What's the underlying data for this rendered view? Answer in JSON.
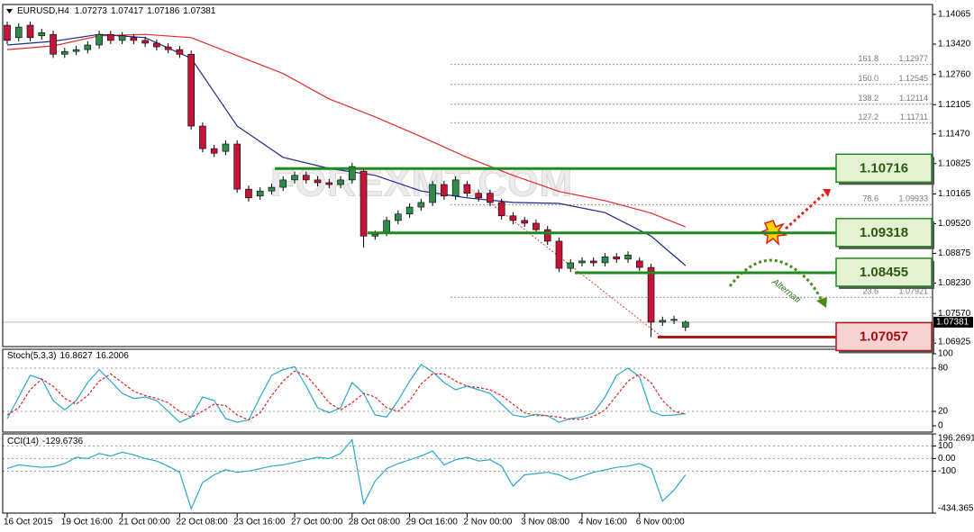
{
  "chart_data": [
    {
      "type": "candlestick",
      "title": "EURUSD,H4",
      "categories": [
        "16 Oct 2015",
        null,
        null,
        null,
        null,
        "19 Oct 16:00",
        null,
        null,
        null,
        null,
        "21 Oct 00:00",
        null,
        null,
        null,
        null,
        "22 Oct 08:00",
        null,
        null,
        null,
        null,
        "23 Oct 16:00",
        null,
        null,
        null,
        null,
        "27 Oct 00:00",
        null,
        null,
        null,
        null,
        "28 Oct 08:00",
        null,
        null,
        null,
        null,
        "29 Oct 16:00",
        null,
        null,
        null,
        null,
        "2 Nov 00:00",
        null,
        null,
        null,
        null,
        "3 Nov 08:00",
        null,
        null,
        null,
        null,
        "4 Nov 16:00",
        null,
        null,
        null,
        null,
        "6 Nov 00:00",
        null,
        null,
        null,
        null
      ],
      "open": [
        1.1383,
        1.1356,
        1.1383,
        1.136,
        1.1363,
        1.132,
        1.1326,
        1.133,
        1.134,
        1.1363,
        1.135,
        1.1356,
        1.135,
        1.1344,
        1.1336,
        1.133,
        1.132,
        1.1164,
        1.1115,
        1.1109,
        1.1125,
        1.1027,
        1.1012,
        1.1023,
        1.1031,
        1.1047,
        1.1057,
        1.1047,
        1.1041,
        1.1037,
        1.1047,
        1.1066,
        1.0925,
        1.0933,
        1.0959,
        1.0973,
        1.0988,
        1.0998,
        1.1037,
        1.1012,
        1.1037,
        1.1018,
        1.1018,
        1.0998,
        1.0969,
        1.0959,
        1.0953,
        1.0939,
        1.0914,
        1.0855,
        1.0867,
        1.0871,
        1.0867,
        1.088,
        1.0875,
        1.0871,
        1.0857,
        1.0738,
        1.0742,
        1.07273
      ],
      "high": [
        1.1391,
        1.1387,
        1.1391,
        1.1375,
        1.1371,
        1.1334,
        1.1338,
        1.1348,
        1.1371,
        1.1371,
        1.1368,
        1.1364,
        1.1358,
        1.1352,
        1.1344,
        1.1338,
        1.1328,
        1.1172,
        1.1123,
        1.1133,
        1.1133,
        1.1035,
        1.1031,
        1.1039,
        1.1055,
        1.1065,
        1.1065,
        1.1055,
        1.1049,
        1.1055,
        1.1084,
        1.1074,
        1.0937,
        1.0967,
        1.0981,
        1.0996,
        1.1006,
        1.1045,
        1.1045,
        1.1055,
        1.1045,
        1.1026,
        1.1026,
        1.1006,
        1.0977,
        1.0967,
        1.0961,
        1.0947,
        1.0922,
        1.0875,
        1.0879,
        1.0879,
        1.0888,
        1.0888,
        1.0892,
        1.0879,
        1.0865,
        1.075,
        1.0752,
        1.07417
      ],
      "low": [
        1.1342,
        1.1348,
        1.1348,
        1.1352,
        1.1312,
        1.1312,
        1.1318,
        1.1322,
        1.1332,
        1.1342,
        1.1342,
        1.1342,
        1.1336,
        1.1328,
        1.1322,
        1.1312,
        1.1156,
        1.1107,
        1.1097,
        1.1101,
        1.1019,
        1.1,
        1.1004,
        1.1015,
        1.1023,
        1.1039,
        1.1039,
        1.1033,
        1.1029,
        1.1029,
        1.1039,
        1.09,
        1.0917,
        1.0925,
        1.0951,
        1.0965,
        1.098,
        1.099,
        1.1004,
        1.1004,
        1.101,
        1.1,
        1.099,
        1.0961,
        1.0951,
        1.0945,
        1.0931,
        1.0906,
        1.0847,
        1.0847,
        1.0859,
        1.0859,
        1.0859,
        1.0867,
        1.0867,
        1.0849,
        1.07057,
        1.073,
        1.0734,
        1.07186
      ],
      "close": [
        1.135,
        1.1379,
        1.1356,
        1.1367,
        1.132,
        1.1326,
        1.133,
        1.134,
        1.1363,
        1.135,
        1.136,
        1.135,
        1.1344,
        1.1336,
        1.133,
        1.132,
        1.1164,
        1.1115,
        1.1105,
        1.1125,
        1.1027,
        1.1008,
        1.1023,
        1.1031,
        1.1047,
        1.1057,
        1.1047,
        1.1041,
        1.1037,
        1.1047,
        1.1076,
        1.0925,
        1.0929,
        1.0959,
        1.0973,
        1.0988,
        1.0998,
        1.1037,
        1.1012,
        1.1047,
        1.1018,
        1.1008,
        1.0998,
        1.0969,
        1.0959,
        1.0953,
        1.0939,
        1.0914,
        1.0855,
        1.0867,
        1.0871,
        1.0867,
        1.088,
        1.0875,
        1.0884,
        1.0857,
        1.0738,
        1.0742,
        1.0744,
        1.07381
      ],
      "up_color": "#2f8a4c",
      "down_color": "#c41438",
      "series": [
        {
          "color": "#e02a2a",
          "x": [
            0,
            4,
            8,
            12,
            16,
            20,
            24,
            28,
            32,
            36,
            40,
            44,
            48,
            52,
            56,
            59
          ],
          "values": [
            1.133,
            1.1338,
            1.136,
            1.1363,
            1.1356,
            1.1317,
            1.1278,
            1.1223,
            1.1184,
            1.1141,
            1.1096,
            1.1057,
            1.1022,
            1.1002,
            1.0975,
            1.0945
          ]
        },
        {
          "color": "#1c2a8a",
          "x": [
            0,
            4,
            8,
            12,
            16,
            20,
            24,
            28,
            32,
            36,
            40,
            44,
            48,
            52,
            56,
            59
          ],
          "values": [
            1.134,
            1.1348,
            1.1363,
            1.1356,
            1.1311,
            1.1164,
            1.1096,
            1.1072,
            1.1057,
            1.1023,
            1.1008,
            1.0998,
            1.0996,
            1.0976,
            1.0925,
            1.0861
          ]
        }
      ],
      "ylim": [
        1.06851,
        1.1428
      ],
      "yticks": [
        1.14065,
        {
          "value": 1.1342,
          "label": "1.13420"
        },
        {
          "value": 1.1276,
          "label": "1.12760"
        },
        1.12105,
        {
          "value": 1.1147,
          "label": "1.11470"
        },
        1.10825,
        1.10165,
        {
          "value": 1.0952,
          "label": "1.09520"
        },
        1.08875,
        {
          "value": 1.0823,
          "label": "1.08230"
        },
        {
          "value": 1.0757,
          "label": "1.07570"
        },
        1.06925
      ],
      "current_price": 1.07381,
      "levels": [
        {
          "value": 1.10716,
          "color": "#1f8a1f",
          "box_color": "#e4f1d2",
          "text_color": "#2b5a12"
        },
        {
          "value": 1.09318,
          "color": "#1f8a1f",
          "box_color": "#e4f1d2",
          "text_color": "#2b5a12"
        },
        {
          "value": 1.08455,
          "color": "#1f8a1f",
          "box_color": "#e4f1d2",
          "text_color": "#2b5a12"
        },
        {
          "value": 1.07057,
          "color": "#b01818",
          "box_color": "#f8d3d3",
          "text_color": "#a01212"
        }
      ],
      "fib": [
        {
          "ratio": "161.8",
          "price": 1.12977
        },
        {
          "ratio": "150.0",
          "price": 1.12545
        },
        {
          "ratio": "138.2",
          "price": 1.12114
        },
        {
          "ratio": "127.2",
          "price": 1.11711
        },
        {
          "ratio": "78.6",
          "price": 1.09933
        },
        {
          "ratio": "23.6",
          "price": 1.07921
        }
      ],
      "watermark": "FOREXMT.COM",
      "annotation": "Alternati"
    },
    {
      "type": "line",
      "title": "Stoch(5,3,3)",
      "series": [
        {
          "color": "#2aa8cc",
          "style": "solid",
          "values": [
            10,
            40,
            70,
            65,
            35,
            22,
            35,
            60,
            78,
            62,
            45,
            38,
            40,
            35,
            20,
            5,
            12,
            40,
            35,
            10,
            5,
            8,
            40,
            70,
            78,
            82,
            55,
            25,
            18,
            25,
            60,
            45,
            15,
            12,
            35,
            62,
            85,
            75,
            60,
            50,
            55,
            50,
            45,
            30,
            15,
            12,
            16,
            14,
            5,
            10,
            12,
            18,
            40,
            70,
            80,
            68,
            20,
            14,
            15,
            16.8627
          ]
        },
        {
          "color": "#e02020",
          "style": "dashed",
          "values": [
            15,
            25,
            50,
            65,
            55,
            38,
            30,
            42,
            62,
            72,
            60,
            48,
            42,
            38,
            32,
            20,
            12,
            20,
            30,
            28,
            15,
            8,
            18,
            42,
            62,
            76,
            70,
            52,
            32,
            22,
            32,
            45,
            40,
            25,
            20,
            35,
            58,
            72,
            72,
            62,
            55,
            53,
            50,
            42,
            30,
            18,
            14,
            14,
            12,
            9,
            9,
            13,
            22,
            42,
            62,
            72,
            60,
            35,
            20,
            16.2006
          ]
        }
      ],
      "ylim": [
        -8.75,
        106.25
      ],
      "yticks": [
        100,
        80,
        20,
        0
      ]
    },
    {
      "type": "line",
      "title": "CCI(14)",
      "series": [
        {
          "color": "#2aa8cc",
          "style": "solid",
          "values": [
            -79,
            -50,
            -60,
            -70,
            -65,
            -40,
            10,
            0,
            40,
            20,
            50,
            30,
            0,
            -20,
            -60,
            -110,
            -400,
            -190,
            -130,
            -90,
            -110,
            -100,
            -80,
            -60,
            -50,
            -30,
            -10,
            10,
            0,
            40,
            150,
            -360,
            -180,
            -80,
            -40,
            -10,
            20,
            60,
            -50,
            -10,
            10,
            -20,
            -10,
            -60,
            -220,
            -130,
            -120,
            -110,
            -130,
            -170,
            -140,
            -110,
            -90,
            -70,
            -60,
            -40,
            -80,
            -340,
            -250,
            -129.6736
          ]
        }
      ],
      "ylim": [
        -434.3655,
        196.2691
      ],
      "yticks": [
        196.2691,
        100,
        {
          "value": 0,
          "label": "0.00"
        },
        -100,
        -434.3655
      ]
    }
  ]
}
